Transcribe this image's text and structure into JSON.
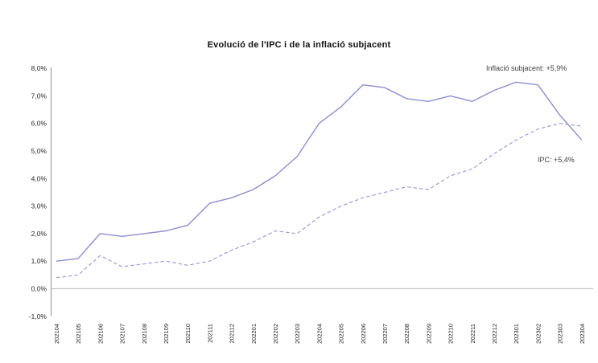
{
  "page": {
    "background": "#ffffff"
  },
  "chart_data": {
    "type": "line",
    "title": "Evolució de l'IPC i de la inflació subjacent",
    "categories": [
      "202104",
      "202105",
      "202106",
      "202107",
      "202108",
      "202109",
      "202110",
      "202111",
      "202112",
      "202201",
      "202202",
      "202203",
      "202204",
      "202205",
      "202206",
      "202207",
      "202208",
      "202209",
      "202210",
      "202211",
      "202212",
      "202301",
      "202302",
      "202303",
      "202304"
    ],
    "series": [
      {
        "name": "IPC",
        "style": "solid",
        "color": "#8d8dd0",
        "values": [
          1.0,
          1.1,
          2.0,
          1.9,
          2.0,
          2.1,
          2.3,
          3.1,
          3.3,
          3.6,
          4.1,
          4.8,
          6.0,
          6.6,
          7.4,
          7.3,
          6.9,
          6.8,
          7.0,
          6.8,
          7.2,
          7.5,
          7.4,
          6.3,
          5.4
        ]
      },
      {
        "name": "Inflació subjacent",
        "style": "dashed",
        "color": "#9d9dd9",
        "values": [
          0.4,
          0.5,
          1.2,
          0.8,
          0.9,
          1.0,
          0.85,
          1.0,
          1.4,
          1.7,
          2.1,
          2.0,
          2.6,
          3.0,
          3.3,
          3.5,
          3.7,
          3.6,
          4.1,
          4.35,
          4.9,
          5.4,
          5.8,
          6.0,
          5.9
        ]
      }
    ],
    "annotations": [
      {
        "series": "Inflació subjacent",
        "text": "Inflació subjacent: +5,9%"
      },
      {
        "series": "IPC",
        "text": "IPC: +5,4%"
      }
    ],
    "ylim": [
      -1,
      8
    ],
    "yticks": [
      -1,
      0,
      1,
      2,
      3,
      4,
      5,
      6,
      7,
      8
    ],
    "ytick_labels": [
      "-1,0%",
      "0,0%",
      "1,0%",
      "2,0%",
      "3,0%",
      "4,0%",
      "5,0%",
      "6,0%",
      "7,0%",
      "8,0%"
    ],
    "xlabel_rotation": -90,
    "grid": "zero-line-only",
    "legend": "none",
    "axis_color": "#a0a0a0",
    "zero_line_color": "#c6c6c6",
    "tick_text_color": "#262626"
  }
}
